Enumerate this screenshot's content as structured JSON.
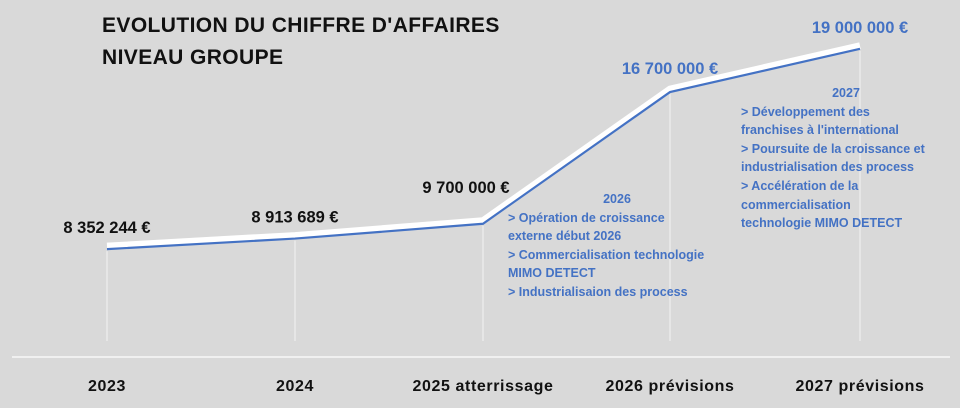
{
  "title_lines": [
    "EVOLUTION DU CHIFFRE D'AFFAIRES",
    "NIVEAU GROUPE"
  ],
  "chart_data": {
    "type": "line",
    "categories": [
      "2023",
      "2024",
      "2025 atterrissage",
      "2026 prévisions",
      "2027 prévisions"
    ],
    "values": [
      8352244,
      8913689,
      9700000,
      16700000,
      19000000
    ],
    "value_labels": [
      "8 352 244 €",
      "8 913 689 €",
      "9 700 000 €",
      "16 700 000 €",
      "19 000 000 €"
    ],
    "ylim": [
      4000000,
      20000000
    ],
    "grid": false,
    "colors": {
      "line": "#4472c4",
      "highlighted_labels": "#4472c4",
      "labels": "#111111"
    },
    "annotations": [
      {
        "year": "2026",
        "lines": [
          "> Opération de croissance",
          "externe début 2026",
          "> Commercialisation technologie",
          "MIMO DETECT",
          "> Industrialisaion des process"
        ]
      },
      {
        "year": "2027",
        "lines": [
          "> Développement des",
          "franchises à l'international",
          "> Poursuite de la croissance et",
          "industrialisation des process",
          "> Accélération de la",
          "commercialisation",
          "technologie MIMO DETECT"
        ]
      }
    ]
  }
}
